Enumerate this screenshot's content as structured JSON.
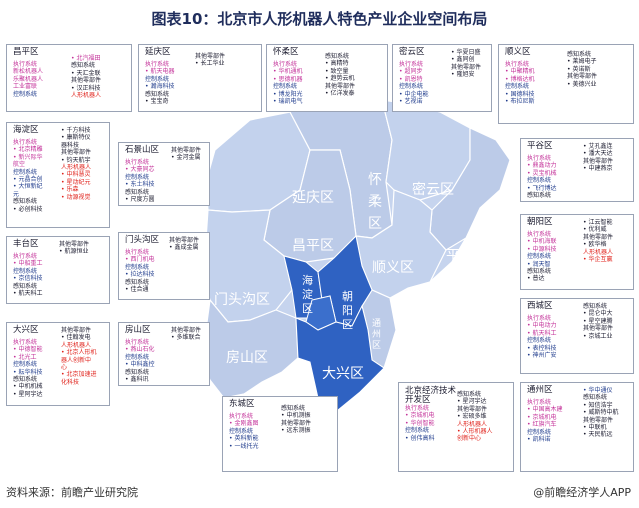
{
  "title": "图表10：北京市人形机器人特色产业企业空间布局",
  "source": "资料来源：前瞻产业研究院",
  "credit": "@前瞻经济学人APP",
  "map_labels": {
    "yanqing": "延庆区",
    "huairou": "怀柔区",
    "miyun": "密云区",
    "changping": "昌平区",
    "pinggu": "平谷区",
    "shunyi": "顺义区",
    "mentougou": "门头沟区",
    "fangshan": "房山区",
    "daxing": "大兴区",
    "haidian": "海淀区",
    "chaoyang": "朝阳区",
    "tongzhou": "通州区",
    "huairou_bottom": "柔区",
    "shijingshan_small": "石景山"
  },
  "boxes": [
    {
      "id": "changping",
      "name": "昌平区",
      "cols": [
        {
          "lines": [
            [
              "执行系统",
              "pink"
            ],
            [
              "新松机器人",
              "pink"
            ],
            [
              "乐聚机器人",
              "pink"
            ],
            [
              "工业富联",
              "pink"
            ],
            [
              "控制系统",
              "blue"
            ]
          ]
        },
        {
          "lines": [
            [
              "• 北汽福田",
              "pink"
            ],
            [
              "感知系统",
              "dark"
            ],
            [
              "• 天汇金联",
              "dark"
            ],
            [
              "其他零部件",
              "dark"
            ],
            [
              "• 汉正科技",
              "dark"
            ],
            [
              "人形机器人",
              "red"
            ]
          ]
        }
      ]
    },
    {
      "id": "yanqing",
      "name": "延庆区",
      "cols": [
        {
          "lines": [
            [
              "执行系统",
              "pink"
            ],
            [
              "• 航天电器",
              "pink"
            ],
            [
              "控制系统",
              "blue"
            ],
            [
              "• 瀚海科技",
              "blue"
            ],
            [
              "感知系统",
              "dark"
            ],
            [
              "• 宝宝奇",
              "dark"
            ]
          ]
        },
        {
          "lines": [
            [
              "其他零部件",
              "dark"
            ],
            [
              "• 长工华业",
              "dark"
            ]
          ]
        }
      ]
    },
    {
      "id": "huairou",
      "name": "怀柔区",
      "cols": [
        {
          "lines": [
            [
              "执行系统",
              "pink"
            ],
            [
              "• 华机通机",
              "pink"
            ],
            [
              "• 思德机器",
              "pink"
            ],
            [
              "控制系统",
              "blue"
            ],
            [
              "• 博龙阳光",
              "blue"
            ],
            [
              "• 瑞凯电气",
              "blue"
            ]
          ]
        },
        {
          "lines": [
            [
              "感知系统",
              "dark"
            ],
            [
              "• 高精特",
              "dark"
            ],
            [
              "• 致空量",
              "dark"
            ],
            [
              "• 趋势云机",
              "dark"
            ],
            [
              "其他零部件",
              "dark"
            ],
            [
              "• 亿洋发泰",
              "dark"
            ]
          ]
        }
      ]
    },
    {
      "id": "miyun",
      "name": "密云区",
      "cols": [
        {
          "lines": [
            [
              "执行系统",
              "pink"
            ],
            [
              "• 超同步",
              "pink"
            ],
            [
              "• 凯恩特",
              "pink"
            ],
            [
              "控制系统",
              "blue"
            ],
            [
              "• 中企电能",
              "blue"
            ],
            [
              "• 艺视诺",
              "blue"
            ]
          ]
        },
        {
          "lines": [
            [
              "• 华夏日盛",
              "dark"
            ],
            [
              "• 鑫同创",
              "dark"
            ],
            [
              "其他零部件",
              "dark"
            ],
            [
              "• 隆旭安",
              "dark"
            ]
          ]
        }
      ]
    },
    {
      "id": "shunyi",
      "name": "顺义区",
      "cols": [
        {
          "lines": [
            [
              "执行系统",
              "pink"
            ],
            [
              "• 中聚精机",
              "pink"
            ],
            [
              "• 博格达机",
              "pink"
            ],
            [
              "控制系统",
              "blue"
            ],
            [
              "• 国德科技",
              "blue"
            ],
            [
              "• 布拉尼斯",
              "blue"
            ]
          ]
        },
        {
          "lines": [
            [
              "感知系统",
              "dark"
            ],
            [
              "• 莱姆电子",
              "dark"
            ],
            [
              "• 英诺斯",
              "dark"
            ],
            [
              "其他零部件",
              "dark"
            ],
            [
              "• 美德兴业",
              "dark"
            ]
          ]
        }
      ]
    },
    {
      "id": "haidian",
      "name": "海淀区",
      "cols": [
        {
          "lines": [
            [
              "执行系统",
              "pink"
            ],
            [
              "• 北京精雕",
              "pink"
            ],
            [
              "• 新兴际华",
              "pink"
            ],
            [
              "航空",
              "pink"
            ],
            [
              "控制系统",
              "blue"
            ],
            [
              "• 元晶合创",
              "blue"
            ],
            [
              "• 大恒新纪",
              "blue"
            ],
            [
              "元",
              "blue"
            ],
            [
              "感知系统",
              "dark"
            ],
            [
              "• 必创科技",
              "dark"
            ]
          ]
        },
        {
          "lines": [
            [
              "• 千方科技",
              "dark"
            ],
            [
              "• 康斯特仪",
              "dark"
            ],
            [
              "器科技",
              "dark"
            ],
            [
              "其他零部件",
              "dark"
            ],
            [
              "• 钧天航宇",
              "dark"
            ],
            [
              "人形机器人",
              "red"
            ],
            [
              "• 中科慧灵",
              "red"
            ],
            [
              "• 星动纪元",
              "red"
            ],
            [
              "• 乐森",
              "red"
            ],
            [
              "• 动源视觉",
              "red"
            ]
          ]
        }
      ]
    },
    {
      "id": "shijingshan",
      "name": "石景山区",
      "cols": [
        {
          "lines": [
            [
              "执行系统",
              "pink"
            ],
            [
              "• 大豪同芯",
              "pink"
            ],
            [
              "控制系统",
              "blue"
            ],
            [
              "• 东土科技",
              "blue"
            ],
            [
              "感知系统",
              "dark"
            ],
            [
              "• 尺度方圆",
              "dark"
            ]
          ]
        },
        {
          "lines": [
            [
              "其他零部件",
              "dark"
            ],
            [
              "• 金河金属",
              "dark"
            ]
          ]
        }
      ]
    },
    {
      "id": "pinggu",
      "name": "平谷区",
      "cols": [
        {
          "lines": [
            [
              "执行系统",
              "pink"
            ],
            [
              "• 鼎鑫动力",
              "pink"
            ],
            [
              "• 灵宝机械",
              "pink"
            ],
            [
              "控制系统",
              "blue"
            ],
            [
              "• 飞行博达",
              "blue"
            ],
            [
              "感知系统",
              "dark"
            ]
          ]
        },
        {
          "lines": [
            [
              "• 艾孔鑫连",
              "dark"
            ],
            [
              "• 潘大天达",
              "dark"
            ],
            [
              "其他零部件",
              "dark"
            ],
            [
              "• 中建燕京",
              "dark"
            ]
          ]
        }
      ]
    },
    {
      "id": "fengtai",
      "name": "丰台区",
      "cols": [
        {
          "lines": [
            [
              "执行系统",
              "pink"
            ],
            [
              "• 中船重工",
              "pink"
            ],
            [
              "控制系统",
              "blue"
            ],
            [
              "• 京信科技",
              "blue"
            ],
            [
              "感知系统",
              "dark"
            ],
            [
              "• 航天科工",
              "dark"
            ]
          ]
        },
        {
          "lines": [
            [
              "其他零部件",
              "dark"
            ],
            [
              "• 航源恒业",
              "dark"
            ]
          ]
        }
      ]
    },
    {
      "id": "mentougou",
      "name": "门头沟区",
      "cols": [
        {
          "lines": [
            [
              "执行系统",
              "pink"
            ],
            [
              "• 西门机电",
              "pink"
            ],
            [
              "控制系统",
              "blue"
            ],
            [
              "• 拉达科技",
              "blue"
            ],
            [
              "感知系统",
              "dark"
            ],
            [
              "• 佳合通",
              "dark"
            ]
          ]
        },
        {
          "lines": [
            [
              "其他零部件",
              "dark"
            ],
            [
              "• 鑫成金属",
              "dark"
            ]
          ]
        }
      ]
    },
    {
      "id": "chaoyang",
      "name": "朝阳区",
      "cols": [
        {
          "lines": [
            [
              "执行系统",
              "pink"
            ],
            [
              "• 中机海联",
              "pink"
            ],
            [
              "• 中源科技",
              "pink"
            ],
            [
              "控制系统",
              "blue"
            ],
            [
              "• 润天智",
              "blue"
            ],
            [
              "感知系统",
              "dark"
            ],
            [
              "• 普达",
              "dark"
            ]
          ]
        },
        {
          "lines": [
            [
              "• 江云智能",
              "dark"
            ],
            [
              "• 优利威",
              "dark"
            ],
            [
              "其他零部件",
              "dark"
            ],
            [
              "• 欧华格",
              "dark"
            ],
            [
              "人形机器人",
              "red"
            ],
            [
              "• 华企互赢",
              "red"
            ]
          ]
        }
      ]
    },
    {
      "id": "daxing",
      "name": "大兴区",
      "cols": [
        {
          "lines": [
            [
              "执行系统",
              "pink"
            ],
            [
              "• 中德智能",
              "pink"
            ],
            [
              "• 北光工",
              "pink"
            ],
            [
              "控制系统",
              "blue"
            ],
            [
              "• 耘华科技",
              "blue"
            ],
            [
              "感知系统",
              "dark"
            ],
            [
              "• 中机机械",
              "dark"
            ],
            [
              "• 星阿宇达",
              "dark"
            ]
          ]
        },
        {
          "lines": [
            [
              "其他零部件",
              "dark"
            ],
            [
              "• 佳翰发电",
              "dark"
            ],
            [
              "人形机器人",
              "red"
            ],
            [
              "• 北京人形机",
              "red"
            ],
            [
              "器人创新中",
              "red"
            ],
            [
              "心",
              "red"
            ],
            [
              "• 北京加速进",
              "red"
            ],
            [
              "化科技",
              "red"
            ]
          ]
        }
      ]
    },
    {
      "id": "fangshan",
      "name": "房山区",
      "cols": [
        {
          "lines": [
            [
              "执行系统",
              "pink"
            ],
            [
              "• 燕山石化",
              "pink"
            ],
            [
              "控制系统",
              "blue"
            ],
            [
              "• 中科鑫控",
              "blue"
            ],
            [
              "感知系统",
              "dark"
            ],
            [
              "• 鑫科讯",
              "dark"
            ]
          ]
        },
        {
          "lines": [
            [
              "其他零部件",
              "dark"
            ],
            [
              "• 多维联合",
              "dark"
            ]
          ]
        }
      ]
    },
    {
      "id": "xicheng",
      "name": "西城区",
      "cols": [
        {
          "lines": [
            [
              "执行系统",
              "pink"
            ],
            [
              "• 中电动力",
              "pink"
            ],
            [
              "• 航天科工",
              "pink"
            ],
            [
              "控制系统",
              "blue"
            ],
            [
              "• 表控科技",
              "blue"
            ],
            [
              "• 神州广安",
              "blue"
            ]
          ]
        },
        {
          "lines": [
            [
              "感知系统",
              "dark"
            ],
            [
              "• 昆仑中大",
              "dark"
            ],
            [
              "• 星空建腾",
              "dark"
            ],
            [
              "其他零部件",
              "dark"
            ],
            [
              "• 京城工业",
              "dark"
            ]
          ]
        }
      ]
    },
    {
      "id": "dongcheng",
      "name": "东城区",
      "cols": [
        {
          "lines": [
            [
              "执行系统",
              "pink"
            ],
            [
              "• 金刚鑫图",
              "pink"
            ],
            [
              "控制系统",
              "blue"
            ],
            [
              "• 英科新能",
              "blue"
            ],
            [
              "• 一线托光",
              "blue"
            ]
          ]
        },
        {
          "lines": [
            [
              "感知系统",
              "dark"
            ],
            [
              "• 中机测振",
              "dark"
            ],
            [
              "其他零部件",
              "dark"
            ],
            [
              "• 远东测振",
              "dark"
            ]
          ]
        }
      ]
    },
    {
      "id": "etown",
      "name": "北京经济技术开发区",
      "name2": "术开发区",
      "cols": [
        {
          "lines": [
            [
              "执行系统",
              "pink"
            ],
            [
              "• 京城机电",
              "pink"
            ],
            [
              "• 华创智能",
              "pink"
            ],
            [
              "控制系统",
              "blue"
            ],
            [
              "• 创伟高科",
              "blue"
            ]
          ]
        },
        {
          "lines": [
            [
              "感知系统",
              "dark"
            ],
            [
              "• 星河宇达",
              "dark"
            ],
            [
              "其他零部件",
              "dark"
            ],
            [
              "• 宏硕多维",
              "dark"
            ],
            [
              "人形机器人",
              "red"
            ],
            [
              "• 人形机器人",
              "red"
            ],
            [
              "创新中心",
              "red"
            ]
          ]
        }
      ]
    },
    {
      "id": "tongzhou",
      "name": "通州区",
      "cols": [
        {
          "lines": [
            [
              "执行系统",
              "pink"
            ],
            [
              "• 中国高木建",
              "pink"
            ],
            [
              "• 京城机电",
              "pink"
            ],
            [
              "• 红旗汽车",
              "pink"
            ],
            [
              "控制系统",
              "blue"
            ],
            [
              "• 凯科诺",
              "blue"
            ]
          ]
        },
        {
          "lines": [
            [
              "• 华中通仪",
              "blue"
            ],
            [
              "感知系统",
              "dark"
            ],
            [
              "• 知信浩宇",
              "dark"
            ],
            [
              "• 威斯特中航",
              "dark"
            ],
            [
              "其他零部件",
              "dark"
            ],
            [
              "• 中联机",
              "dark"
            ],
            [
              "• 天民航远",
              "dark"
            ]
          ]
        }
      ]
    }
  ],
  "colors": {
    "map_light": "#c6d4ee",
    "map_mid": "#aebfe2",
    "map_dark": "#2f62c2",
    "label": "#ffffff",
    "title": "#1f2d5c"
  }
}
